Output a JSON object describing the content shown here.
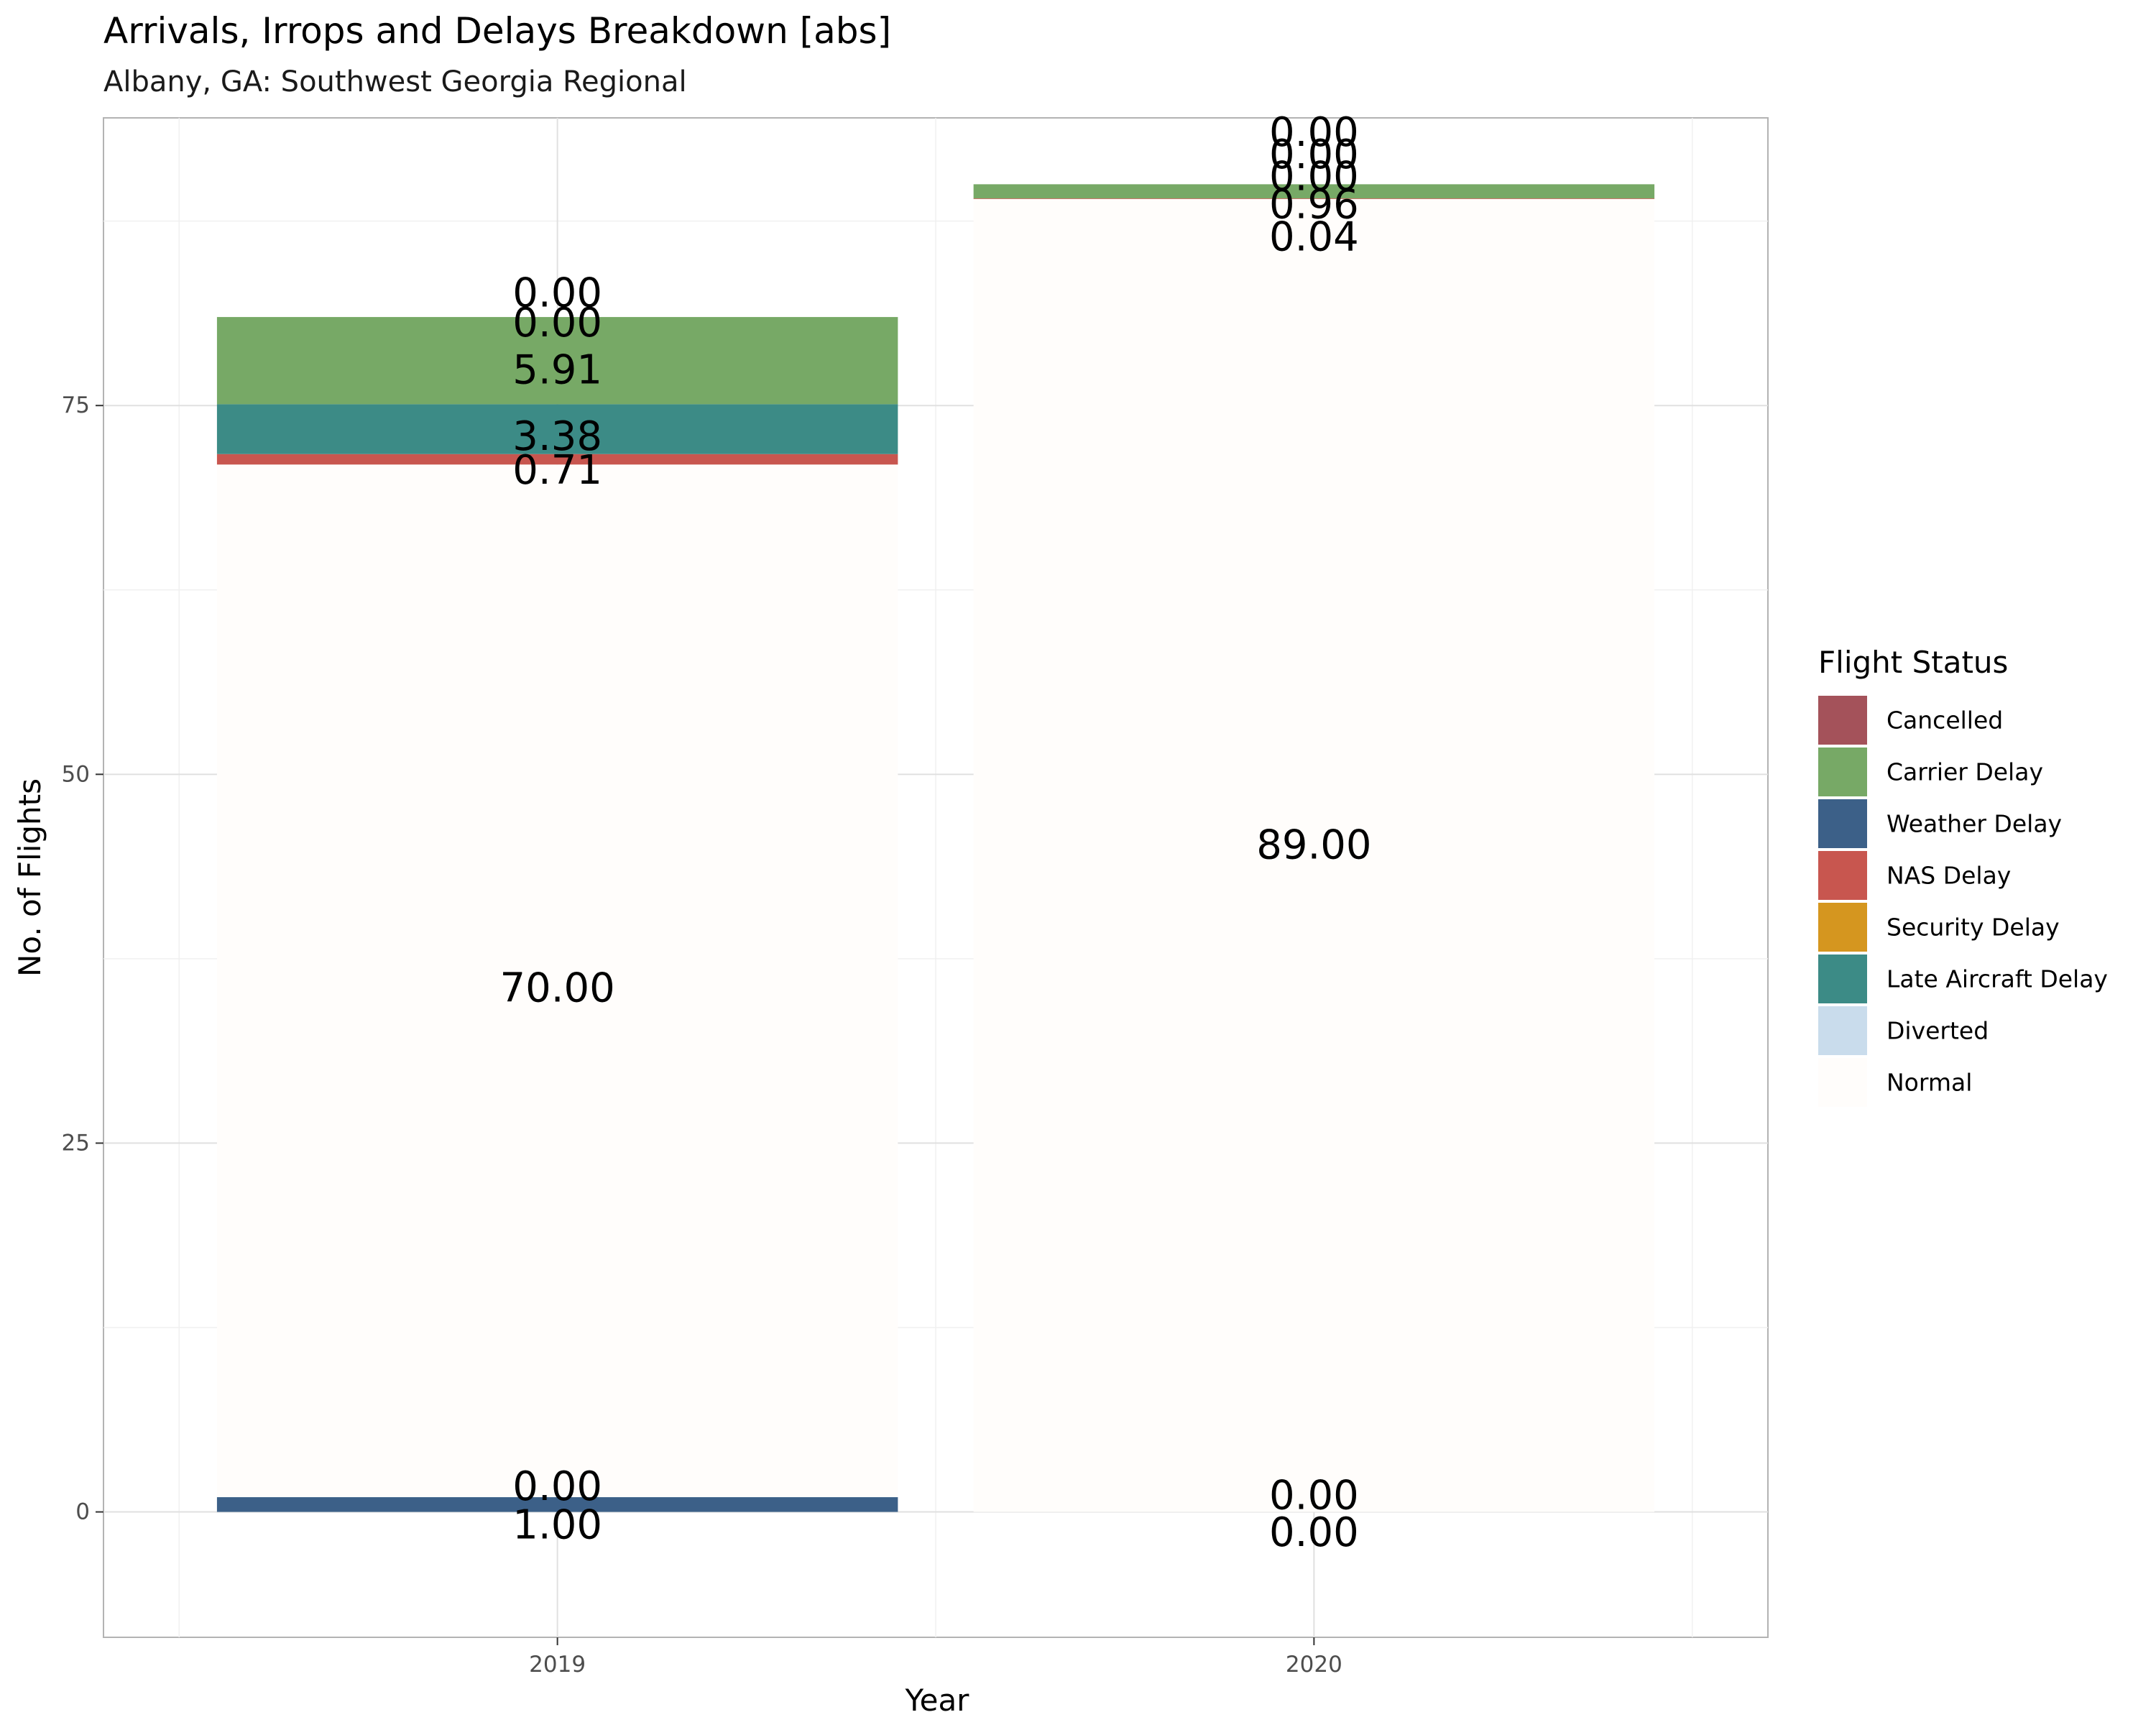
{
  "chart_data": {
    "type": "bar",
    "stacked": true,
    "title": "Arrivals, Irrops and Delays Breakdown [abs]",
    "subtitle": "Albany, GA: Southwest Georgia Regional",
    "xlabel": "Year",
    "ylabel": "No. of Flights",
    "categories": [
      "2019",
      "2020"
    ],
    "ylim": [
      -8.5,
      94.5
    ],
    "yticks": [
      0,
      25,
      50,
      75
    ],
    "grid": true,
    "legend": {
      "title": "Flight Status",
      "position": "right"
    },
    "series": [
      {
        "name": "Cancelled",
        "color": "#a4525a",
        "values": [
          0.0,
          0.0
        ]
      },
      {
        "name": "Carrier Delay",
        "color": "#77a966",
        "values": [
          5.91,
          0.96
        ]
      },
      {
        "name": "Weather Delay",
        "color": "#3c6088",
        "values": [
          1.0,
          0.0
        ]
      },
      {
        "name": "NAS Delay",
        "color": "#c8564f",
        "values": [
          0.71,
          0.04
        ]
      },
      {
        "name": "Security Delay",
        "color": "#d5961f",
        "values": [
          0.0,
          0.0
        ]
      },
      {
        "name": "Late Aircraft Delay",
        "color": "#3c8b86",
        "values": [
          3.38,
          0.0
        ]
      },
      {
        "name": "Diverted",
        "color": "#c9dcec",
        "values": [
          0.0,
          0.0
        ]
      },
      {
        "name": "Normal",
        "color": "#fffdfb",
        "values": [
          70.0,
          89.0
        ]
      }
    ],
    "stack_order": [
      "Weather Delay",
      "Diverted",
      "Normal",
      "NAS Delay",
      "Late Aircraft Delay",
      "Carrier Delay",
      "Security Delay",
      "Cancelled"
    ],
    "data_labels": [
      {
        "category": "2019",
        "text": "1.00",
        "y": -0.9
      },
      {
        "category": "2019",
        "text": "0.00",
        "y": 1.7
      },
      {
        "category": "2019",
        "text": "70.00",
        "y": 35.5
      },
      {
        "category": "2019",
        "text": "0.71",
        "y": 70.6
      },
      {
        "category": "2019",
        "text": "3.38",
        "y": 72.9
      },
      {
        "category": "2019",
        "text": "5.91",
        "y": 77.4
      },
      {
        "category": "2019",
        "text": "0.00",
        "y": 80.6
      },
      {
        "category": "2019",
        "text": "0.00",
        "y": 82.6
      },
      {
        "category": "2020",
        "text": "0.00",
        "y": -1.4
      },
      {
        "category": "2020",
        "text": "0.00",
        "y": 1.1
      },
      {
        "category": "2020",
        "text": "89.00",
        "y": 45.2
      },
      {
        "category": "2020",
        "text": "0.04",
        "y": 86.4
      },
      {
        "category": "2020",
        "text": "0.96",
        "y": 88.6
      },
      {
        "category": "2020",
        "text": "0.00",
        "y": 90.5
      },
      {
        "category": "2020",
        "text": "0.00",
        "y": 92.0
      },
      {
        "category": "2020",
        "text": "0.00",
        "y": 93.5
      }
    ]
  }
}
